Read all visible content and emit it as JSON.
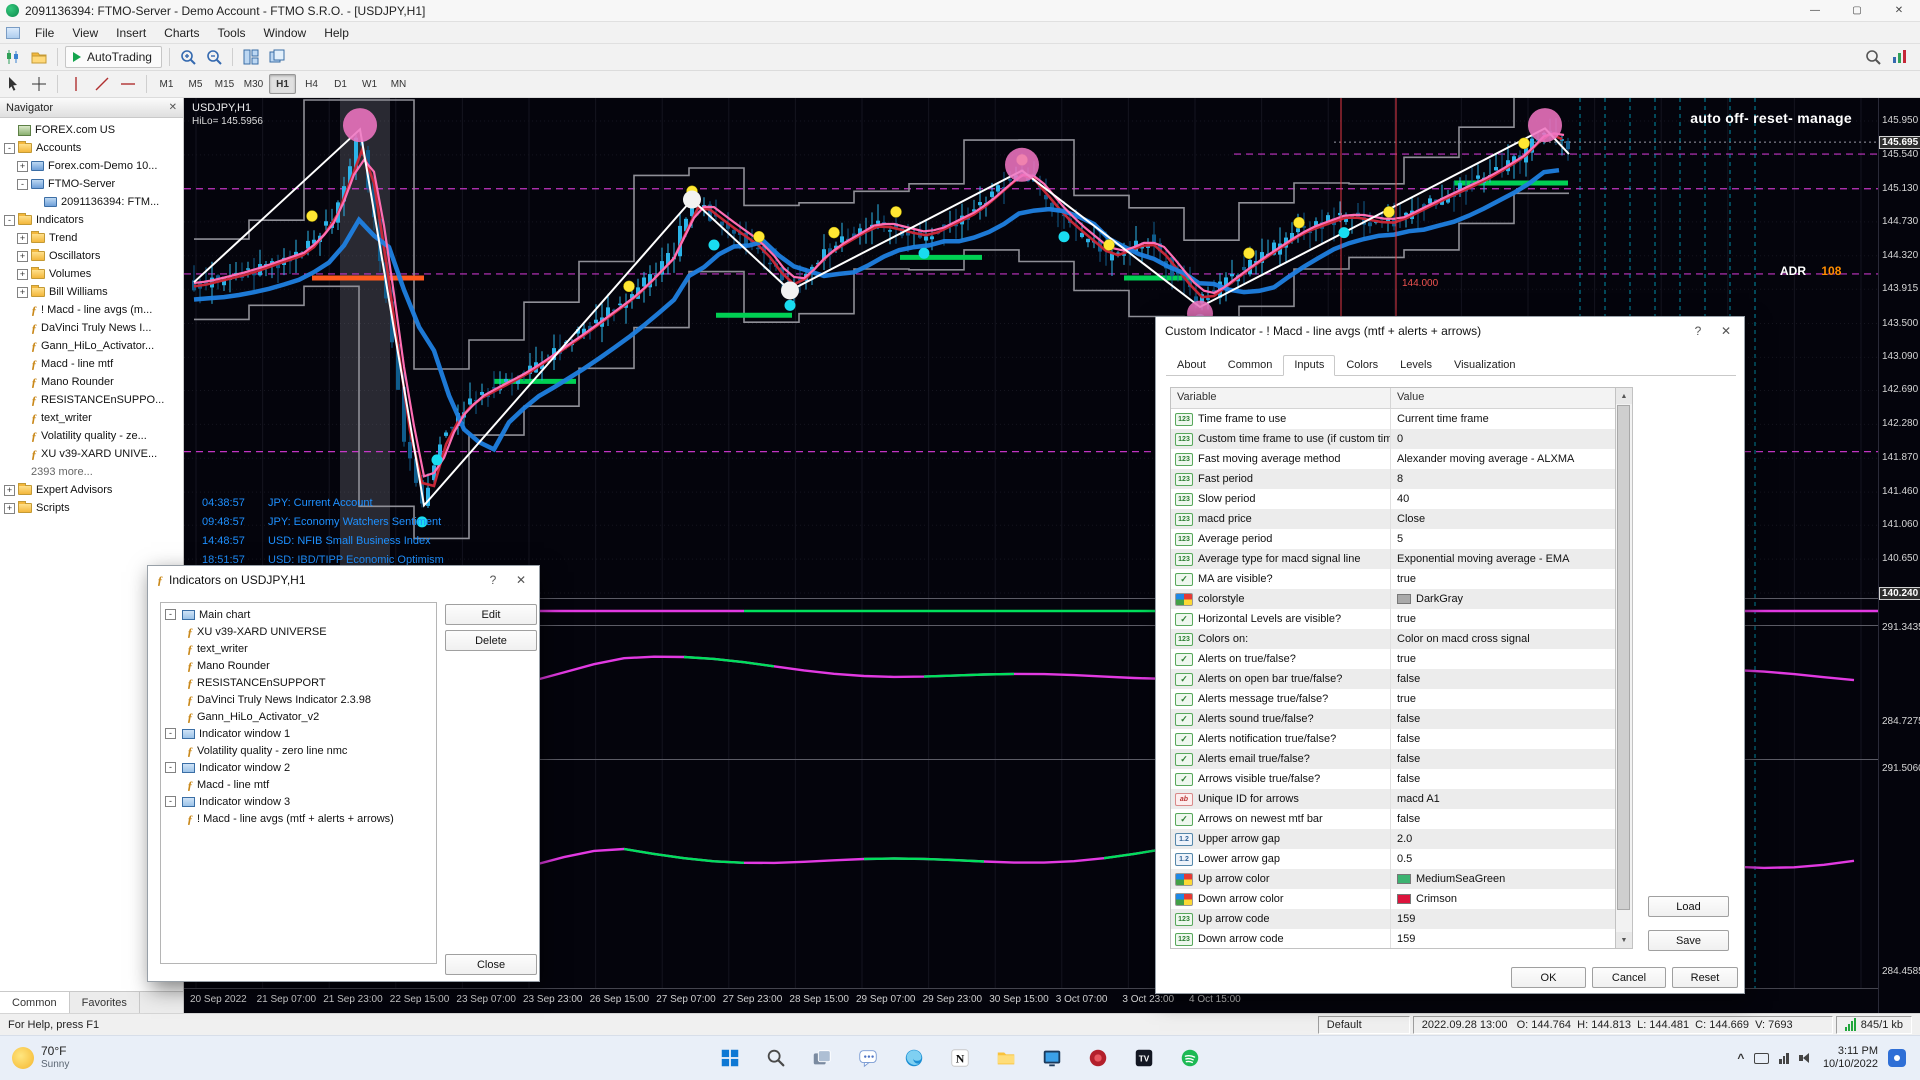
{
  "window": {
    "title": "2091136394: FTMO-Server - Demo Account - FTMO S.R.O. - [USDJPY,H1]"
  },
  "glyphs": {
    "minimize": "—",
    "maximize": "▢",
    "close": "✕",
    "help": "?",
    "chevron_up": "^",
    "arrow_up": "▲",
    "arrow_down": "▼"
  },
  "menu": {
    "items": [
      "File",
      "View",
      "Insert",
      "Charts",
      "Tools",
      "Window",
      "Help"
    ]
  },
  "toolbar": {
    "autotrading_label": "AutoTrading",
    "timeframes": [
      "M1",
      "M5",
      "M15",
      "M30",
      "H1",
      "H4",
      "D1",
      "W1",
      "MN"
    ],
    "active_timeframe": "H1",
    "icons": [
      "new-chart-icon",
      "profiles-icon",
      "autotrading-icon",
      "zoom-in-icon",
      "zoom-out-icon",
      "tile-windows-icon",
      "cascade-windows-icon",
      "search-icon",
      "data-window-icon",
      "cursor-icon",
      "crosshair-icon",
      "vertical-line-icon",
      "trendline-icon",
      "horizontal-line-icon"
    ]
  },
  "navigator": {
    "title": "Navigator",
    "items": [
      {
        "label": "FOREX.com US",
        "level": 0,
        "icon": "server-icon",
        "expand": null
      },
      {
        "label": "Accounts",
        "level": 0,
        "icon": "folder-icon",
        "expand": "minus"
      },
      {
        "label": "Forex.com-Demo 10...",
        "level": 1,
        "icon": "account-icon",
        "expand": "plus"
      },
      {
        "label": "FTMO-Server",
        "level": 1,
        "icon": "account-icon",
        "expand": "minus"
      },
      {
        "label": "2091136394: FTM...",
        "level": 2,
        "icon": "account-icon",
        "expand": null
      },
      {
        "label": "Indicators",
        "level": 0,
        "icon": "folder-icon",
        "expand": "minus"
      },
      {
        "label": "Trend",
        "level": 1,
        "icon": "folder-icon",
        "expand": "plus"
      },
      {
        "label": "Oscillators",
        "level": 1,
        "icon": "folder-icon",
        "expand": "plus"
      },
      {
        "label": "Volumes",
        "level": 1,
        "icon": "folder-icon",
        "expand": "plus"
      },
      {
        "label": "Bill Williams",
        "level": 1,
        "icon": "folder-icon",
        "expand": "plus"
      },
      {
        "label": "! Macd - line avgs (m...",
        "level": 1,
        "icon": "indicator-icon",
        "expand": null
      },
      {
        "label": "DaVinci Truly News I...",
        "level": 1,
        "icon": "indicator-icon",
        "expand": null
      },
      {
        "label": "Gann_HiLo_Activator...",
        "level": 1,
        "icon": "indicator-icon",
        "expand": null
      },
      {
        "label": "Macd - line mtf",
        "level": 1,
        "icon": "indicator-icon",
        "expand": null
      },
      {
        "label": "Mano Rounder",
        "level": 1,
        "icon": "indicator-icon",
        "expand": null
      },
      {
        "label": "RESISTANCEnSUPPO...",
        "level": 1,
        "icon": "indicator-icon",
        "expand": null
      },
      {
        "label": "text_writer",
        "level": 1,
        "icon": "indicator-icon",
        "expand": null
      },
      {
        "label": "Volatility quality - ze...",
        "level": 1,
        "icon": "indicator-icon",
        "expand": null
      },
      {
        "label": "XU v39-XARD UNIVE...",
        "level": 1,
        "icon": "indicator-icon",
        "expand": null
      },
      {
        "label": "2393 more...",
        "level": 1,
        "icon": null,
        "expand": null
      },
      {
        "label": "Expert Advisors",
        "level": 0,
        "icon": "folder-icon",
        "expand": "plus"
      },
      {
        "label": "Scripts",
        "level": 0,
        "icon": "folder-icon",
        "expand": "plus"
      }
    ],
    "tabs": [
      {
        "label": "Common",
        "active": true
      },
      {
        "label": "Favorites",
        "active": false
      }
    ]
  },
  "chart": {
    "symbol": "USDJPY,H1",
    "hilo": "HiLo= 145.5956",
    "overlay_top_right": "auto off- reset- manage",
    "adr_label": "ADR",
    "adr_value": "108",
    "level_label": "144.000",
    "current_price": "145.695",
    "boxed_price_labels": [
      "145.695",
      "140.240"
    ],
    "price_labels": [
      "145.950",
      "145.540",
      "145.130",
      "144.730",
      "144.320",
      "143.915",
      "143.500",
      "143.090",
      "142.690",
      "142.280",
      "141.870",
      "141.460",
      "141.060",
      "140.650",
      "140.240"
    ],
    "sub_labels": [
      "291.3435",
      "284.7275",
      "291.5060",
      "284.4585"
    ],
    "time_labels": [
      "20 Sep 2022",
      "21 Sep 07:00",
      "21 Sep 23:00",
      "22 Sep 15:00",
      "23 Sep 07:00",
      "23 Sep 23:00",
      "26 Sep 15:00",
      "27 Sep 07:00",
      "27 Sep 23:00",
      "28 Sep 15:00",
      "29 Sep 07:00",
      "29 Sep 23:00",
      "30 Sep 15:00",
      "3 Oct 07:00",
      "3 Oct 23:00",
      "4 Oct 15:00"
    ],
    "news": [
      {
        "time": "04:38:57",
        "text": "JPY: Current Account"
      },
      {
        "time": "09:48:57",
        "text": "JPY: Economy Watchers Sentiment"
      },
      {
        "time": "14:48:57",
        "text": "USD: NFIB Small Business Index"
      },
      {
        "time": "18:51:57",
        "text": "USD: IBD/TIPP Economic Optimism"
      }
    ],
    "colors": {
      "background": "#04040c",
      "bull_candle": "#2bb3e8",
      "bear_candle": "#0f5c8c",
      "ma_blue": "#1f7fe0",
      "ma_pink": "#ff6eb4",
      "ma_crimson": "#c62838",
      "zigzag_white": "#ffffff",
      "channel_gray": "#8f8f97",
      "level_magenta": "#d63ad6",
      "support_green": "#00d053",
      "resistance_orange": "#ff5a1e",
      "dot_yellow": "#ffe733",
      "dot_cyan": "#19dcf0",
      "bubble_pink": "#ee74c0",
      "news_text": "#1e90ff",
      "adr_orange": "#ff8c00"
    }
  },
  "indicators_dialog": {
    "title": "Indicators on USDJPY,H1",
    "groups": [
      {
        "label": "Main chart",
        "children": [
          "XU v39-XARD UNIVERSE",
          "text_writer",
          "Mano Rounder",
          "RESISTANCEnSUPPORT",
          "DaVinci Truly News Indicator 2.3.98",
          "Gann_HiLo_Activator_v2"
        ]
      },
      {
        "label": "Indicator window 1",
        "children": [
          "Volatility quality - zero line nmc"
        ]
      },
      {
        "label": "Indicator window 2",
        "children": [
          "Macd - line mtf"
        ]
      },
      {
        "label": "Indicator window 3",
        "children": [
          "! Macd - line avgs (mtf + alerts + arrows)"
        ]
      }
    ],
    "buttons": {
      "edit": "Edit",
      "delete": "Delete",
      "close": "Close"
    }
  },
  "inputs_dialog": {
    "title": "Custom Indicator - ! Macd - line avgs (mtf + alerts + arrows)",
    "tabs": [
      {
        "label": "About",
        "active": false
      },
      {
        "label": "Common",
        "active": false
      },
      {
        "label": "Inputs",
        "active": true
      },
      {
        "label": "Colors",
        "active": false
      },
      {
        "label": "Levels",
        "active": false
      },
      {
        "label": "Visualization",
        "active": false
      }
    ],
    "columns": {
      "variable": "Variable",
      "value": "Value"
    },
    "rows": [
      {
        "type": "int",
        "name": "Time frame to use",
        "value": "Current time frame"
      },
      {
        "type": "int",
        "name": "Custom time frame to use (if custom tim...",
        "value": "0"
      },
      {
        "type": "int",
        "name": "Fast moving average method",
        "value": "Alexander moving average - ALXMA"
      },
      {
        "type": "int",
        "name": "Fast period",
        "value": "8"
      },
      {
        "type": "int",
        "name": "Slow period",
        "value": "40"
      },
      {
        "type": "int",
        "name": "macd price",
        "value": "Close"
      },
      {
        "type": "int",
        "name": "Average period",
        "value": "5"
      },
      {
        "type": "int",
        "name": "Average type for macd signal line",
        "value": "Exponential moving average - EMA"
      },
      {
        "type": "bool",
        "name": "MA are visible?",
        "value": "true"
      },
      {
        "type": "col",
        "name": "colorstyle",
        "value": "DarkGray",
        "swatch": "#a9a9a9"
      },
      {
        "type": "bool",
        "name": "Horizontal Levels are visible?",
        "value": "true"
      },
      {
        "type": "int",
        "name": "Colors on:",
        "value": "Color on macd cross signal"
      },
      {
        "type": "bool",
        "name": "Alerts on true/false?",
        "value": "true"
      },
      {
        "type": "bool",
        "name": "Alerts on open bar true/false?",
        "value": "false"
      },
      {
        "type": "bool",
        "name": "Alerts message true/false?",
        "value": "true"
      },
      {
        "type": "bool",
        "name": "Alerts sound true/false?",
        "value": "false"
      },
      {
        "type": "bool",
        "name": "Alerts notification true/false?",
        "value": "false"
      },
      {
        "type": "bool",
        "name": "Alerts email true/false?",
        "value": "false"
      },
      {
        "type": "bool",
        "name": "Arrows visible true/false?",
        "value": "false"
      },
      {
        "type": "str",
        "name": "Unique ID for arrows",
        "value": "macd A1"
      },
      {
        "type": "bool",
        "name": "Arrows on newest mtf bar",
        "value": "false"
      },
      {
        "type": "dbl",
        "name": "Upper arrow gap",
        "value": "2.0"
      },
      {
        "type": "dbl",
        "name": "Lower arrow gap",
        "value": "0.5"
      },
      {
        "type": "col",
        "name": "Up arrow color",
        "value": "MediumSeaGreen",
        "swatch": "#3cb371"
      },
      {
        "type": "col",
        "name": "Down arrow color",
        "value": "Crimson",
        "swatch": "#dc143c"
      },
      {
        "type": "int",
        "name": "Up arrow code",
        "value": "159"
      },
      {
        "type": "int",
        "name": "Down arrow code",
        "value": "159"
      }
    ],
    "buttons": {
      "load": "Load",
      "save": "Save",
      "ok": "OK",
      "cancel": "Cancel",
      "reset": "Reset"
    }
  },
  "status_bar": {
    "help": "For Help, press F1",
    "profile": "Default",
    "quote": "2022.09.28 13:00   O: 144.764  H: 144.813  L: 144.481  C: 144.669  V: 7693",
    "traffic": "845/1 kb"
  },
  "taskbar": {
    "weather_temp": "70°F",
    "weather_cond": "Sunny",
    "apps": [
      "start",
      "search",
      "task-view",
      "chat",
      "edge",
      "notion",
      "explorer",
      "remote-desktop",
      "browser",
      "tradingview",
      "spotify"
    ],
    "time": "3:11 PM",
    "date": "10/10/2022"
  }
}
